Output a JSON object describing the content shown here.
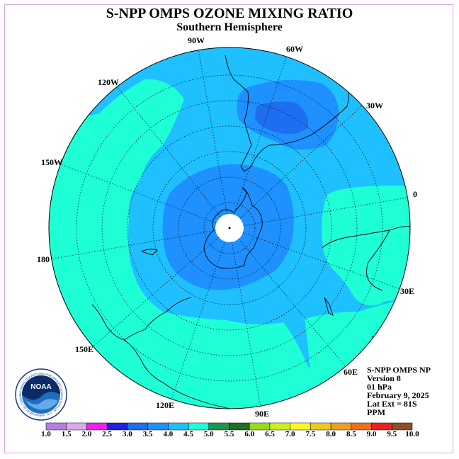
{
  "title": "S-NPP OMPS OZONE MIXING RATIO",
  "subtitle": "Southern Hemisphere",
  "longitude_labels": [
    "90W",
    "60W",
    "120W",
    "30W",
    "150W",
    "0",
    "180",
    "30E",
    "150E",
    "60E",
    "120E",
    "90E"
  ],
  "info": {
    "line1": "S-NPP OMPS NP",
    "line2": "Version 8",
    "line3": "01 hPa",
    "line4": "February 9, 2025",
    "line5": "Lat Ext = 81S",
    "line6": "PPM"
  },
  "colorbar": {
    "labels": [
      "1.0",
      "1.5",
      "2.0",
      "2.5",
      "3.0",
      "3.5",
      "4.0",
      "4.5",
      "5.0",
      "5.5",
      "6.0",
      "6.5",
      "7.0",
      "7.5",
      "8.0",
      "8.5",
      "9.0",
      "9.5",
      "10.0"
    ],
    "colors": [
      "#b87ce8",
      "#dca8f0",
      "#f020f0",
      "#2020e8",
      "#1e6ef0",
      "#1e90ff",
      "#1ec0ff",
      "#1effd6",
      "#1e9650",
      "#1e6e28",
      "#96dc1e",
      "#c8f01e",
      "#fafa1e",
      "#f0c81e",
      "#f0a01e",
      "#f06e1e",
      "#f01e1e",
      "#8c5028"
    ]
  },
  "logo": {
    "text": "NOAA",
    "ring_text": "NATIONAL OCEANIC AND ATMOSPHERIC ADMINISTRATION · U.S. DEPARTMENT OF COMMERCE"
  }
}
